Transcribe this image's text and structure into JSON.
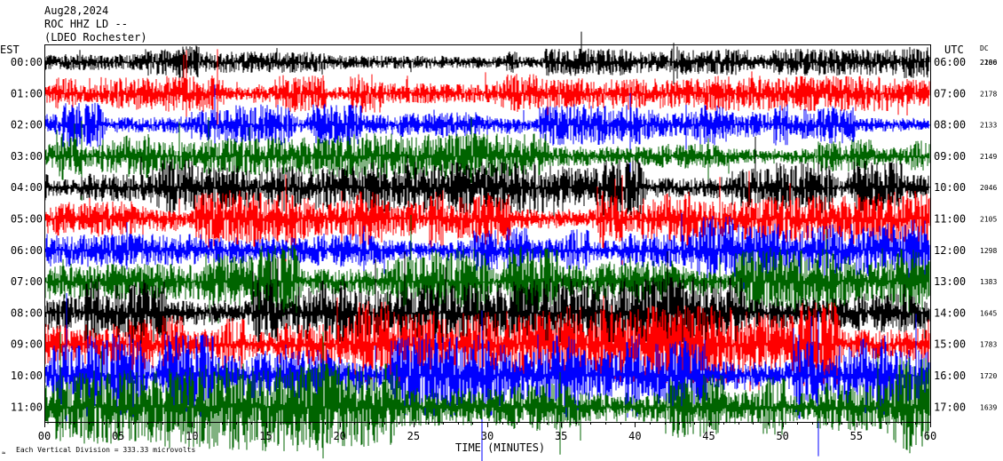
{
  "header": {
    "date": "Aug28,2024",
    "station": "ROC HHZ LD --",
    "network": "(LDEO Rochester)"
  },
  "left_axis_title": "EST",
  "right_axis_title": "UTC",
  "dc_title": "DC",
  "x_axis_title": "TIME (MINUTES)",
  "footnote": "Each Vertical Division =  333.33 microvolts",
  "footnote_mark": "≈",
  "chart_data": {
    "type": "line",
    "title": "",
    "xlabel": "TIME (MINUTES)",
    "xlim": [
      0,
      60
    ],
    "x_ticks": [
      0,
      5,
      10,
      15,
      20,
      25,
      30,
      35,
      40,
      45,
      50,
      55,
      60
    ],
    "x_tick_labels": [
      "00",
      "05",
      "10",
      "15",
      "20",
      "25",
      "30",
      "35",
      "40",
      "45",
      "50",
      "55",
      "60"
    ],
    "color_cycle": [
      "#000000",
      "#ff0000",
      "#0000ff",
      "#006400"
    ],
    "rows": [
      {
        "est": "00:00",
        "utc": "06:00",
        "dc": "2200",
        "dc_overlap": "2186"
      },
      {
        "est": "01:00",
        "utc": "07:00",
        "dc": "2178"
      },
      {
        "est": "02:00",
        "utc": "08:00",
        "dc": "2133"
      },
      {
        "est": "03:00",
        "utc": "09:00",
        "dc": "2149"
      },
      {
        "est": "04:00",
        "utc": "10:00",
        "dc": "2046"
      },
      {
        "est": "05:00",
        "utc": "11:00",
        "dc": "2105"
      },
      {
        "est": "06:00",
        "utc": "12:00",
        "dc": "1298"
      },
      {
        "est": "07:00",
        "utc": "13:00",
        "dc": "1383"
      },
      {
        "est": "08:00",
        "utc": "14:00",
        "dc": "1645"
      },
      {
        "est": "09:00",
        "utc": "15:00",
        "dc": "1783"
      },
      {
        "est": "10:00",
        "utc": "16:00",
        "dc": "1720"
      },
      {
        "est": "11:00",
        "utc": "17:00",
        "dc": "1639"
      }
    ]
  }
}
